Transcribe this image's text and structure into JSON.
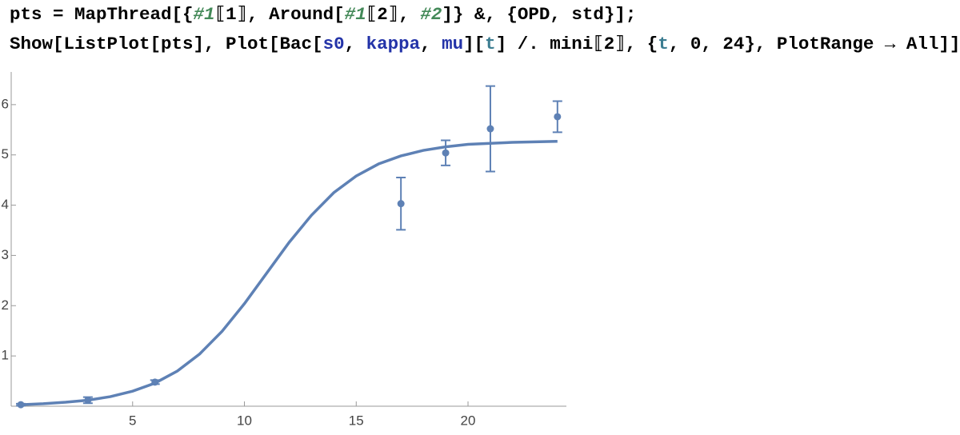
{
  "code": [
    [
      {
        "text": "pts = MapThread[{",
        "style": "plain"
      },
      {
        "text": "#1",
        "style": "pattern"
      },
      {
        "text": "⟦1⟧, Around[",
        "style": "plain"
      },
      {
        "text": "#1",
        "style": "pattern"
      },
      {
        "text": "⟦2⟧, ",
        "style": "plain"
      },
      {
        "text": "#2",
        "style": "pattern"
      },
      {
        "text": "]} &, {OPD, std}];",
        "style": "plain"
      }
    ],
    [
      {
        "text": "Show[ListPlot[pts], Plot[Bac[",
        "style": "plain"
      },
      {
        "text": "s0",
        "style": "symbol"
      },
      {
        "text": ", ",
        "style": "plain"
      },
      {
        "text": "kappa",
        "style": "symbol"
      },
      {
        "text": ", ",
        "style": "plain"
      },
      {
        "text": "mu",
        "style": "symbol"
      },
      {
        "text": "][",
        "style": "plain"
      },
      {
        "text": "t",
        "style": "local"
      },
      {
        "text": "] /. mini⟦2⟧, {",
        "style": "plain"
      },
      {
        "text": "t",
        "style": "local"
      },
      {
        "text": ", 0, 24}, PlotRange → All]]",
        "style": "plain"
      }
    ]
  ],
  "chart_data": {
    "type": "scatter-line",
    "xlim": [
      -0.43,
      24.4
    ],
    "ylim": [
      0,
      6.65
    ],
    "xticks": [
      5,
      10,
      15,
      20
    ],
    "yticks": [
      1,
      2,
      3,
      4,
      5,
      6
    ],
    "series": [
      {
        "type": "scatter",
        "color": "#5e81b5",
        "x": [
          0,
          3,
          6,
          17,
          19,
          21,
          24
        ],
        "values": [
          0.03,
          0.12,
          0.48,
          4.03,
          5.04,
          5.52,
          5.76
        ],
        "errors": [
          0.02,
          0.06,
          0.04,
          0.52,
          0.25,
          0.85,
          0.31
        ]
      },
      {
        "type": "line",
        "color": "#5e81b5",
        "x": [
          0,
          1,
          2,
          3,
          4,
          5,
          6,
          7,
          8,
          9,
          10,
          11,
          12,
          13,
          14,
          15,
          16,
          17,
          18,
          19,
          20,
          21,
          22,
          23,
          24
        ],
        "values": [
          0.03,
          0.05,
          0.08,
          0.12,
          0.19,
          0.3,
          0.46,
          0.7,
          1.04,
          1.49,
          2.04,
          2.65,
          3.26,
          3.8,
          4.25,
          4.58,
          4.82,
          4.98,
          5.09,
          5.16,
          5.21,
          5.23,
          5.25,
          5.26,
          5.27
        ]
      }
    ]
  }
}
